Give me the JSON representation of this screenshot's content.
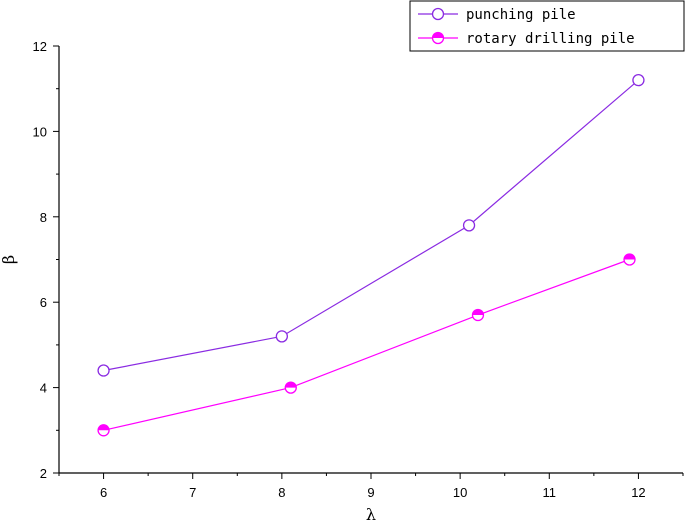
{
  "chart_data": {
    "type": "line",
    "xlabel": "λ",
    "ylabel": "β",
    "xlim": [
      5.5,
      12.5
    ],
    "ylim": [
      2,
      12
    ],
    "xticks": [
      6,
      7,
      8,
      9,
      10,
      11,
      12
    ],
    "yticks": [
      2,
      4,
      6,
      8,
      10,
      12
    ],
    "grid": false,
    "legend_position": "top-right",
    "series": [
      {
        "name": "punching pile",
        "color": "#8a2be2",
        "marker": "open-circle",
        "x": [
          6,
          8,
          10.1,
          12
        ],
        "y": [
          4.4,
          5.2,
          7.8,
          11.2
        ]
      },
      {
        "name": "rotary drilling pile",
        "color": "#ff00ff",
        "marker": "half-filled-circle",
        "x": [
          6,
          8.1,
          10.2,
          11.9
        ],
        "y": [
          3.0,
          4.0,
          5.7,
          7.0
        ]
      }
    ]
  }
}
